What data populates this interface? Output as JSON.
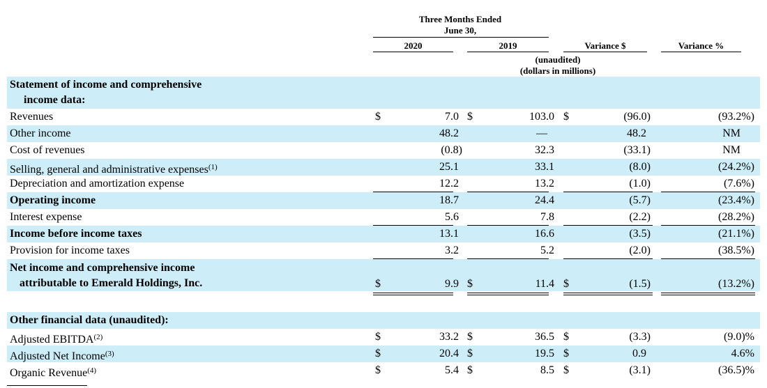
{
  "header": {
    "period_line1": "Three Months Ended",
    "period_line2": "June 30,",
    "col_2020": "2020",
    "col_2019": "2019",
    "col_var_dollar": "Variance $",
    "col_var_pct": "Variance %",
    "note1": "(unaudited)",
    "note2": "(dollars in millions)"
  },
  "sections": [
    {
      "title_line1": "Statement of income and comprehensive",
      "title_line2": "income data:"
    },
    {
      "title": "Other financial data (unaudited):"
    }
  ],
  "rows": [
    {
      "label": "Revenues",
      "sup": "",
      "y2020": "7.0",
      "y2019": "103.0",
      "var_d": "(96.0)",
      "var_p": "(93.2%)",
      "dollar": "$"
    },
    {
      "label": "Other income",
      "sup": "",
      "y2020": "48.2",
      "y2019": "—",
      "var_d": "48.2",
      "var_p": "NM",
      "dollar": ""
    },
    {
      "label": "Cost of revenues",
      "sup": "",
      "y2020": "(0.8)",
      "y2019": "32.3",
      "var_d": "(33.1)",
      "var_p": "NM",
      "dollar": ""
    },
    {
      "label": "Selling, general and administrative expenses",
      "sup": "(1)",
      "y2020": "25.1",
      "y2019": "33.1",
      "var_d": "(8.0)",
      "var_p": "(24.2%)",
      "dollar": ""
    },
    {
      "label": "Depreciation and amortization expense",
      "sup": "",
      "y2020": "12.2",
      "y2019": "13.2",
      "var_d": "(1.0)",
      "var_p": "(7.6%)",
      "dollar": ""
    },
    {
      "label": "Operating income",
      "sup": "",
      "y2020": "18.7",
      "y2019": "24.4",
      "var_d": "(5.7)",
      "var_p": "(23.4%)",
      "dollar": ""
    },
    {
      "label": "Interest expense",
      "sup": "",
      "y2020": "5.6",
      "y2019": "7.8",
      "var_d": "(2.2)",
      "var_p": "(28.2%)",
      "dollar": ""
    },
    {
      "label": "Income before income taxes",
      "sup": "",
      "y2020": "13.1",
      "y2019": "16.6",
      "var_d": "(3.5)",
      "var_p": "(21.1%)",
      "dollar": ""
    },
    {
      "label": "Provision for income taxes",
      "sup": "",
      "y2020": "3.2",
      "y2019": "5.2",
      "var_d": "(2.0)",
      "var_p": "(38.5%)",
      "dollar": ""
    },
    {
      "label_line1": "Net income and comprehensive income",
      "label_line2": "attributable to Emerald Holdings, Inc.",
      "y2020": "9.9",
      "y2019": "11.4",
      "var_d": "(1.5)",
      "var_p": "(13.2%)",
      "dollar": "$"
    },
    {
      "label": "Adjusted EBITDA",
      "sup": "(2)",
      "y2020": "33.2",
      "y2019": "36.5",
      "var_d": "(3.3)",
      "var_p": "(9.0)%",
      "dollar": "$"
    },
    {
      "label": "Adjusted Net Income",
      "sup": "(3)",
      "y2020": "20.4",
      "y2019": "19.5",
      "var_d": "0.9",
      "var_p": "4.6%",
      "dollar": "$"
    },
    {
      "label": "Organic Revenue",
      "sup": "(4)",
      "y2020": "5.4",
      "y2019": "8.5",
      "var_d": "(3.1)",
      "var_p": "(36.5)%",
      "dollar": "$"
    }
  ]
}
